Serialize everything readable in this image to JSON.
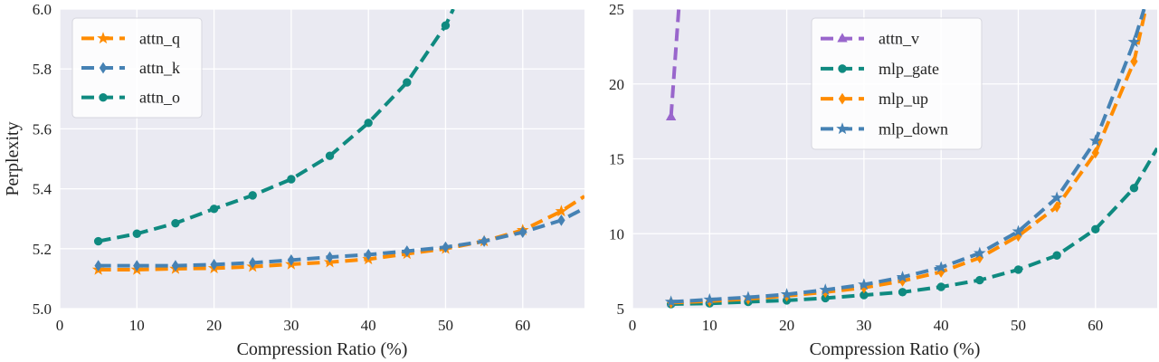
{
  "chart_data": [
    {
      "type": "line",
      "xlabel": "Compression Ratio (%)",
      "ylabel": "Perplexity",
      "xlim": [
        0,
        68
      ],
      "ylim": [
        5.0,
        6.0
      ],
      "xticks": [
        "0",
        "10",
        "20",
        "30",
        "40",
        "50",
        "60"
      ],
      "yticks": [
        "5.0",
        "5.2",
        "5.4",
        "5.6",
        "5.8",
        "6.0"
      ],
      "grid": true,
      "legend_position": "top-left",
      "series": [
        {
          "name": "attn_q",
          "color": "#ff8c00",
          "marker": "star",
          "x": [
            5,
            10,
            15,
            20,
            25,
            30,
            35,
            40,
            45,
            50,
            55,
            60,
            65,
            68
          ],
          "y": [
            5.13,
            5.13,
            5.133,
            5.135,
            5.14,
            5.148,
            5.155,
            5.165,
            5.183,
            5.2,
            5.225,
            5.262,
            5.325,
            5.375
          ]
        },
        {
          "name": "attn_k",
          "color": "#4682b4",
          "marker": "diamond",
          "x": [
            5,
            10,
            15,
            20,
            25,
            30,
            35,
            40,
            45,
            50,
            55,
            60,
            65,
            68
          ],
          "y": [
            5.143,
            5.143,
            5.143,
            5.147,
            5.153,
            5.162,
            5.172,
            5.18,
            5.192,
            5.205,
            5.225,
            5.255,
            5.295,
            5.335
          ]
        },
        {
          "name": "attn_o",
          "color": "#0f8a80",
          "marker": "circle",
          "x": [
            5,
            10,
            15,
            20,
            25,
            30,
            35,
            40,
            45,
            50,
            51
          ],
          "y": [
            5.225,
            5.25,
            5.285,
            5.333,
            5.378,
            5.432,
            5.51,
            5.62,
            5.755,
            5.945,
            6.0
          ]
        }
      ]
    },
    {
      "type": "line",
      "xlabel": "Compression Ratio (%)",
      "ylabel": "",
      "xlim": [
        0,
        68
      ],
      "ylim": [
        5,
        25
      ],
      "xticks": [
        "0",
        "10",
        "20",
        "30",
        "40",
        "50",
        "60"
      ],
      "yticks": [
        "5",
        "10",
        "15",
        "20",
        "25"
      ],
      "grid": true,
      "legend_position": "top-center",
      "series": [
        {
          "name": "attn_v",
          "color": "#9966cc",
          "marker": "triangle",
          "x": [
            5,
            6
          ],
          "y": [
            17.8,
            25
          ]
        },
        {
          "name": "mlp_gate",
          "color": "#0f8a80",
          "marker": "circle",
          "x": [
            5,
            10,
            15,
            20,
            25,
            30,
            35,
            40,
            45,
            50,
            55,
            60,
            65,
            68
          ],
          "y": [
            5.3,
            5.35,
            5.45,
            5.55,
            5.7,
            5.9,
            6.1,
            6.45,
            6.9,
            7.6,
            8.55,
            10.3,
            13.05,
            15.7
          ]
        },
        {
          "name": "mlp_up",
          "color": "#ff8c00",
          "marker": "diamond",
          "x": [
            5,
            10,
            15,
            20,
            25,
            30,
            35,
            40,
            45,
            50,
            55,
            60,
            65,
            66.5
          ],
          "y": [
            5.4,
            5.5,
            5.65,
            5.85,
            6.1,
            6.4,
            6.85,
            7.45,
            8.4,
            9.85,
            11.8,
            15.4,
            21.5,
            25
          ]
        },
        {
          "name": "mlp_down",
          "color": "#4682b4",
          "marker": "star",
          "x": [
            5,
            10,
            15,
            20,
            25,
            30,
            35,
            40,
            45,
            50,
            55,
            60,
            65,
            66.3
          ],
          "y": [
            5.45,
            5.6,
            5.75,
            5.95,
            6.25,
            6.6,
            7.1,
            7.75,
            8.7,
            10.15,
            12.4,
            16.2,
            22.8,
            25
          ]
        }
      ]
    }
  ]
}
